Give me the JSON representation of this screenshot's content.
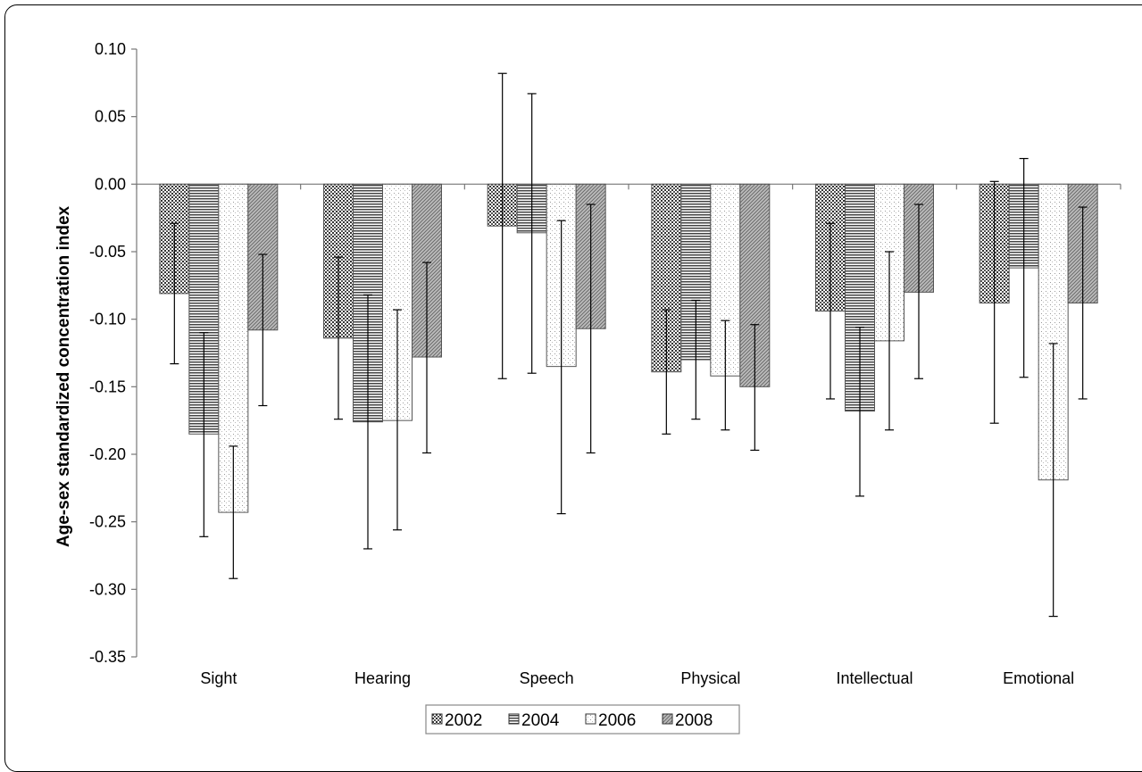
{
  "chart_data": {
    "type": "bar",
    "title": "",
    "xlabel": "",
    "ylabel": "Age-sex standardized concentration index",
    "ylim": [
      -0.35,
      0.1
    ],
    "yticks": [
      "0.10",
      "0.05",
      "0.00",
      "-0.05",
      "-0.10",
      "-0.15",
      "-0.20",
      "-0.25",
      "-0.30",
      "-0.35"
    ],
    "ytick_values": [
      0.1,
      0.05,
      0.0,
      -0.05,
      -0.1,
      -0.15,
      -0.2,
      -0.25,
      -0.3,
      -0.35
    ],
    "categories": [
      "Sight",
      "Hearing",
      "Speech",
      "Physical",
      "Intellectual",
      "Emotional"
    ],
    "legend_position": "bottom",
    "grid": false,
    "series": [
      {
        "name": "2002",
        "pattern": "dots",
        "values": [
          -0.081,
          -0.114,
          -0.031,
          -0.139,
          -0.094,
          -0.088
        ],
        "err_low": [
          -0.133,
          -0.174,
          -0.144,
          -0.185,
          -0.159,
          -0.177
        ],
        "err_high": [
          -0.029,
          -0.054,
          0.082,
          -0.093,
          -0.029,
          0.002
        ]
      },
      {
        "name": "2004",
        "pattern": "hlines",
        "values": [
          -0.185,
          -0.176,
          -0.036,
          -0.13,
          -0.168,
          -0.062
        ],
        "err_low": [
          -0.261,
          -0.27,
          -0.14,
          -0.174,
          -0.231,
          -0.143
        ],
        "err_high": [
          -0.11,
          -0.082,
          0.067,
          -0.086,
          -0.106,
          0.019
        ]
      },
      {
        "name": "2006",
        "pattern": "sparse",
        "values": [
          -0.243,
          -0.175,
          -0.135,
          -0.142,
          -0.116,
          -0.219
        ],
        "err_low": [
          -0.292,
          -0.256,
          -0.244,
          -0.182,
          -0.182,
          -0.32
        ],
        "err_high": [
          -0.194,
          -0.093,
          -0.027,
          -0.101,
          -0.05,
          -0.118
        ]
      },
      {
        "name": "2008",
        "pattern": "diag",
        "values": [
          -0.108,
          -0.128,
          -0.107,
          -0.15,
          -0.08,
          -0.088
        ],
        "err_low": [
          -0.164,
          -0.199,
          -0.199,
          -0.197,
          -0.144,
          -0.159
        ],
        "err_high": [
          -0.052,
          -0.058,
          -0.015,
          -0.104,
          -0.015,
          -0.017
        ]
      }
    ]
  }
}
